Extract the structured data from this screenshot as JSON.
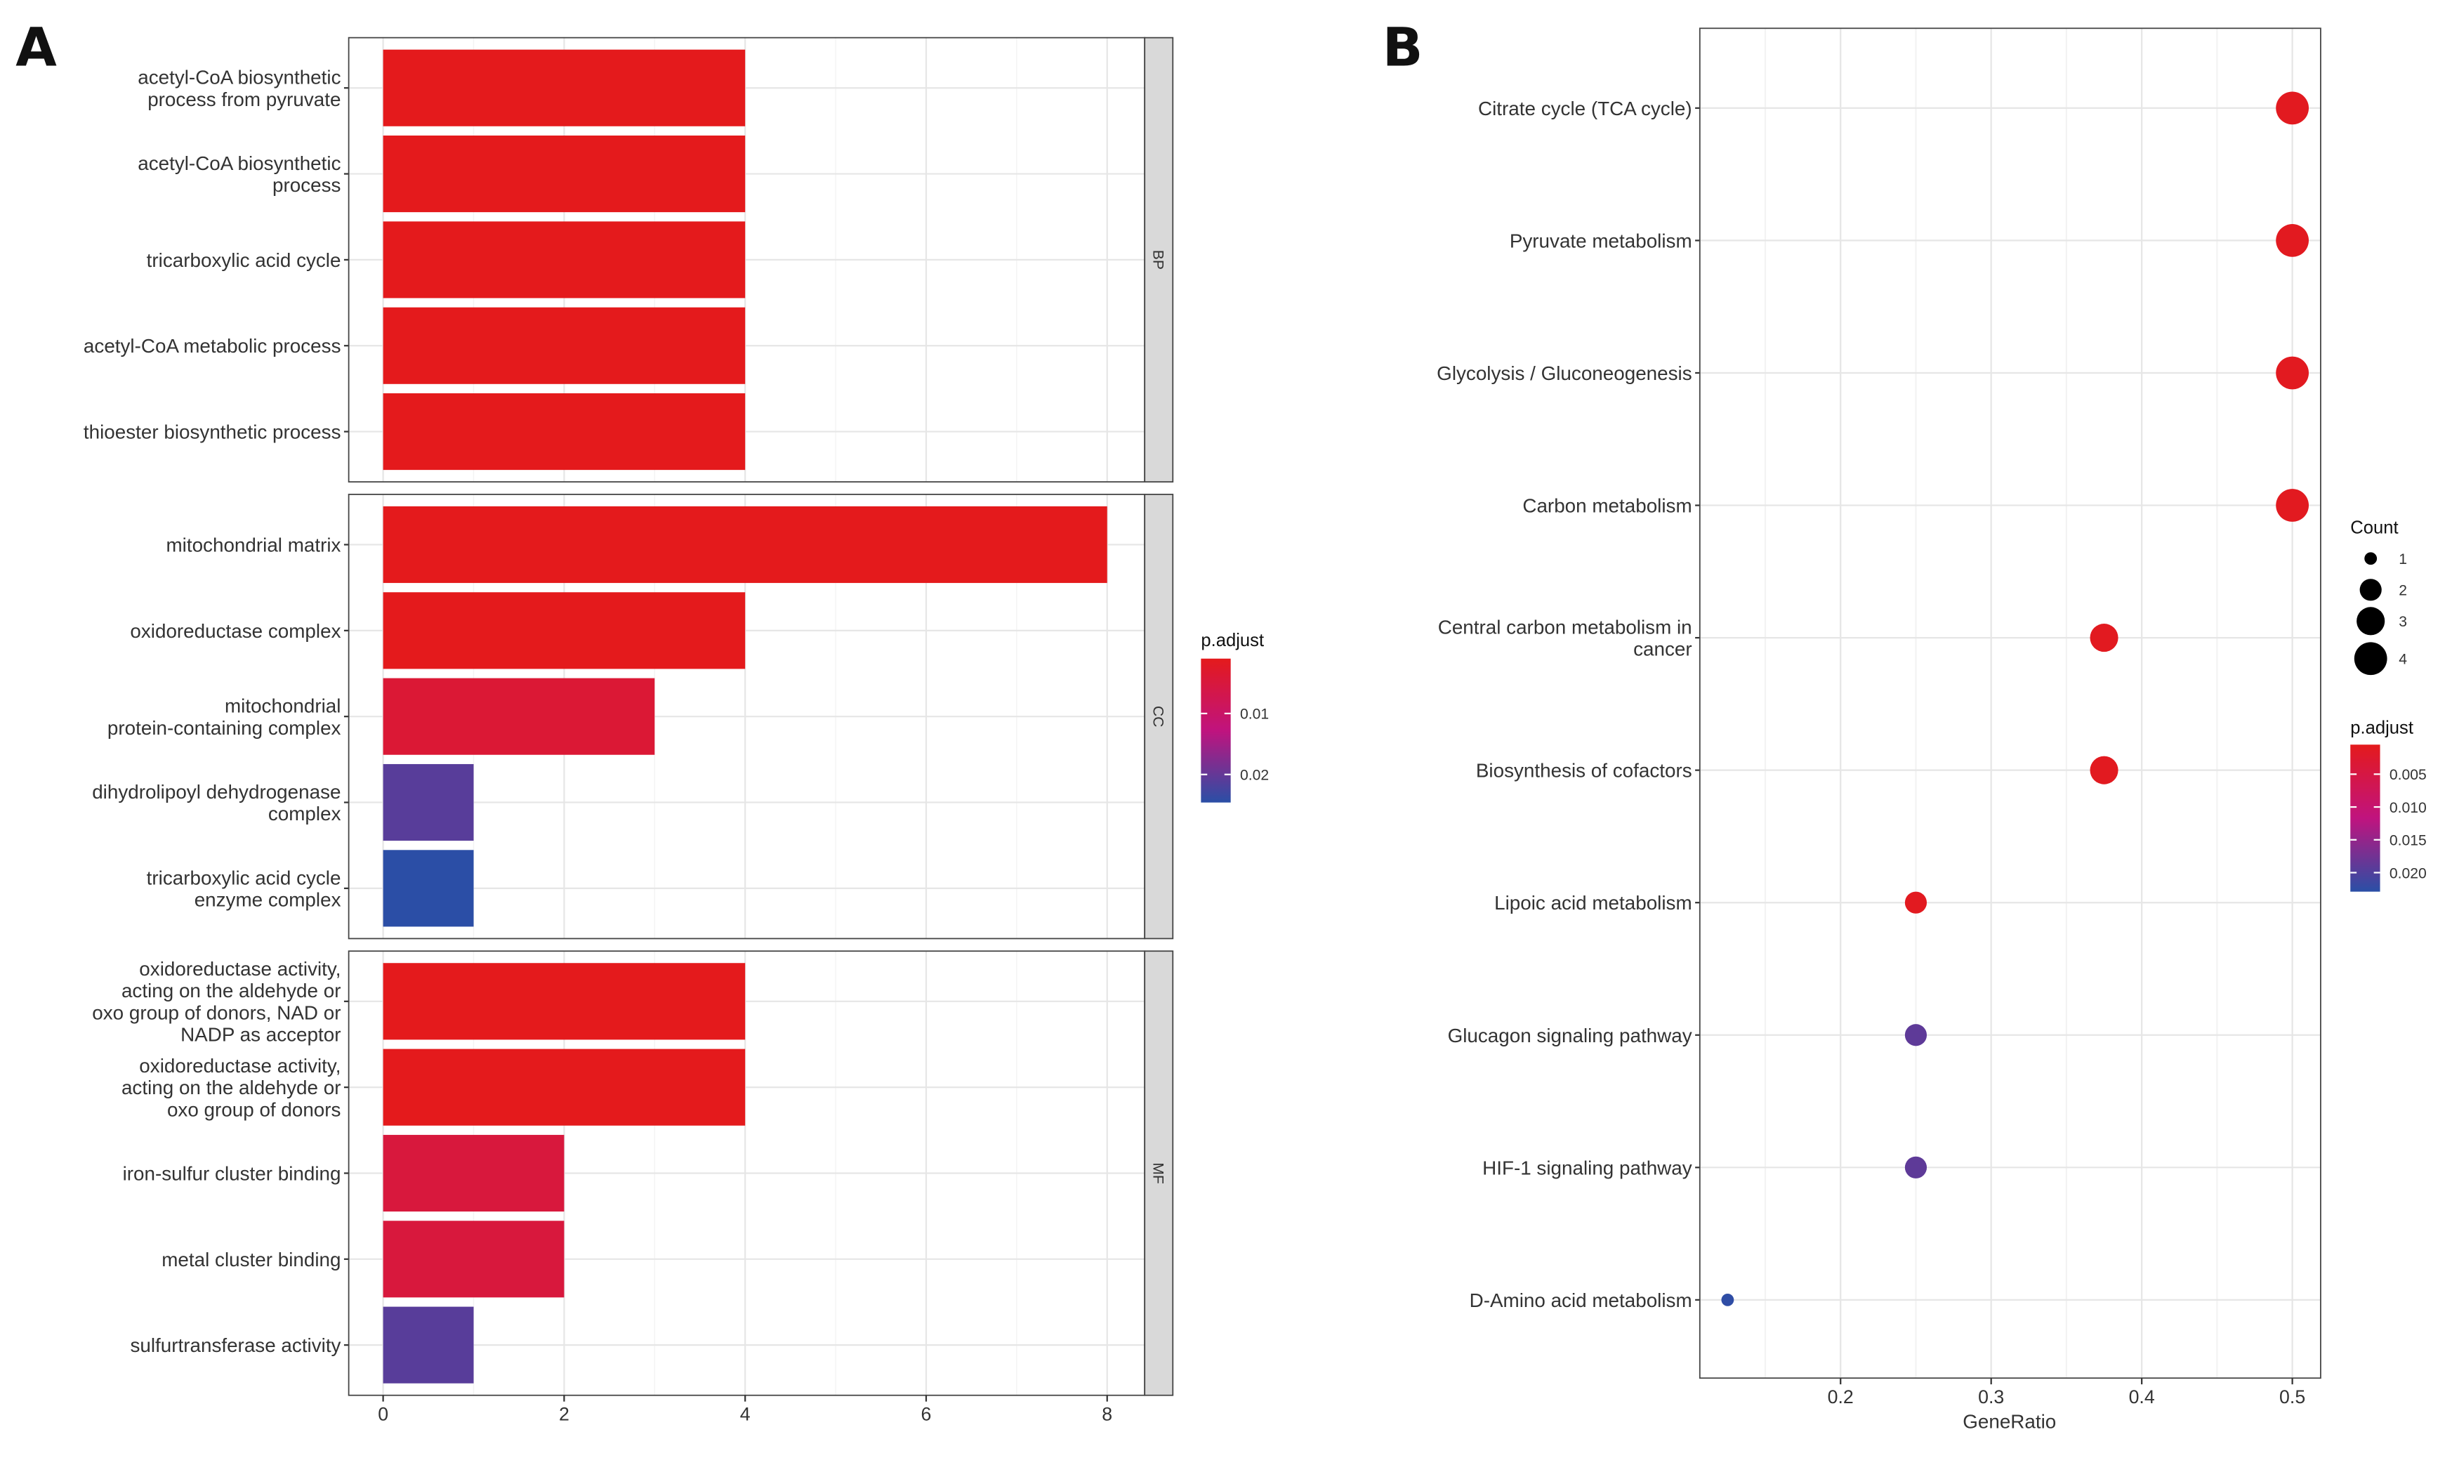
{
  "chart_data": [
    {
      "panel": "A",
      "type": "bar",
      "orientation": "horizontal",
      "xlim": [
        0,
        8.6
      ],
      "xticks": [
        "0",
        "2",
        "4",
        "6",
        "8"
      ],
      "grid": true,
      "color_legend": {
        "title": "p.adjust",
        "ticks": [
          "0.01",
          "0.02"
        ],
        "range": [
          0.001,
          0.0246
        ],
        "placement": "right"
      },
      "facets": [
        {
          "name": "BP",
          "bars": [
            {
              "label": [
                "acetyl-CoA biosynthetic",
                "process from pyruvate"
              ],
              "value": 4,
              "padj": 0.001
            },
            {
              "label": [
                "acetyl-CoA biosynthetic",
                "process"
              ],
              "value": 4,
              "padj": 0.001
            },
            {
              "label": [
                "tricarboxylic acid cycle"
              ],
              "value": 4,
              "padj": 0.001
            },
            {
              "label": [
                "acetyl-CoA metabolic process"
              ],
              "value": 4,
              "padj": 0.001
            },
            {
              "label": [
                "thioester biosynthetic process"
              ],
              "value": 4,
              "padj": 0.001
            }
          ]
        },
        {
          "name": "CC",
          "bars": [
            {
              "label": [
                "mitochondrial matrix"
              ],
              "value": 8,
              "padj": 0.001
            },
            {
              "label": [
                "oxidoreductase complex"
              ],
              "value": 4,
              "padj": 0.001
            },
            {
              "label": [
                "mitochondrial",
                "protein-containing complex"
              ],
              "value": 3,
              "padj": 0.004
            },
            {
              "label": [
                "dihydrolipoyl dehydrogenase",
                "complex"
              ],
              "value": 1,
              "padj": 0.021
            },
            {
              "label": [
                "tricarboxylic acid cycle",
                "enzyme complex"
              ],
              "value": 1,
              "padj": 0.0245
            }
          ]
        },
        {
          "name": "MF",
          "bars": [
            {
              "label": [
                "oxidoreductase activity,",
                "acting on the aldehyde or",
                "oxo group of donors, NAD or",
                "NADP as acceptor"
              ],
              "value": 4,
              "padj": 0.001
            },
            {
              "label": [
                "oxidoreductase activity,",
                "acting on the aldehyde or",
                "oxo group of donors"
              ],
              "value": 4,
              "padj": 0.001
            },
            {
              "label": [
                "iron-sulfur cluster binding"
              ],
              "value": 2,
              "padj": 0.005
            },
            {
              "label": [
                "metal cluster binding"
              ],
              "value": 2,
              "padj": 0.005
            },
            {
              "label": [
                "sulfurtransferase activity"
              ],
              "value": 1,
              "padj": 0.021
            }
          ]
        }
      ]
    },
    {
      "panel": "B",
      "type": "scatter",
      "xlabel": "GeneRatio",
      "xlim": [
        0.11,
        0.52
      ],
      "xticks": [
        "0.2",
        "0.3",
        "0.4",
        "0.5"
      ],
      "grid": true,
      "size_legend": {
        "title": "Count",
        "values": [
          "1",
          "2",
          "3",
          "4"
        ],
        "placement": "right"
      },
      "color_legend": {
        "title": "p.adjust",
        "ticks": [
          "0.005",
          "0.010",
          "0.015",
          "0.020"
        ],
        "range": [
          0.0005,
          0.0229
        ],
        "placement": "right"
      },
      "points": [
        {
          "label": [
            "Citrate cycle (TCA cycle)"
          ],
          "x": 0.5,
          "count": 4,
          "padj": 0.001
        },
        {
          "label": [
            "Pyruvate metabolism"
          ],
          "x": 0.5,
          "count": 4,
          "padj": 0.001
        },
        {
          "label": [
            "Glycolysis / Gluconeogenesis"
          ],
          "x": 0.5,
          "count": 4,
          "padj": 0.001
        },
        {
          "label": [
            "Carbon metabolism"
          ],
          "x": 0.5,
          "count": 4,
          "padj": 0.001
        },
        {
          "label": [
            "Central carbon metabolism in",
            "cancer"
          ],
          "x": 0.375,
          "count": 3,
          "padj": 0.001
        },
        {
          "label": [
            "Biosynthesis of cofactors"
          ],
          "x": 0.375,
          "count": 3,
          "padj": 0.001
        },
        {
          "label": [
            "Lipoic acid metabolism"
          ],
          "x": 0.25,
          "count": 2,
          "padj": 0.001
        },
        {
          "label": [
            "Glucagon signaling pathway"
          ],
          "x": 0.25,
          "count": 2,
          "padj": 0.019
        },
        {
          "label": [
            "HIF-1 signaling pathway"
          ],
          "x": 0.25,
          "count": 2,
          "padj": 0.019
        },
        {
          "label": [
            "D-Amino acid metabolism"
          ],
          "x": 0.125,
          "count": 1,
          "padj": 0.0225
        }
      ]
    }
  ],
  "panel_labels": [
    "A",
    "B"
  ],
  "colors": {
    "low": "#E41A1C",
    "mid": "#C0137E",
    "high": "#2A4FA6"
  }
}
